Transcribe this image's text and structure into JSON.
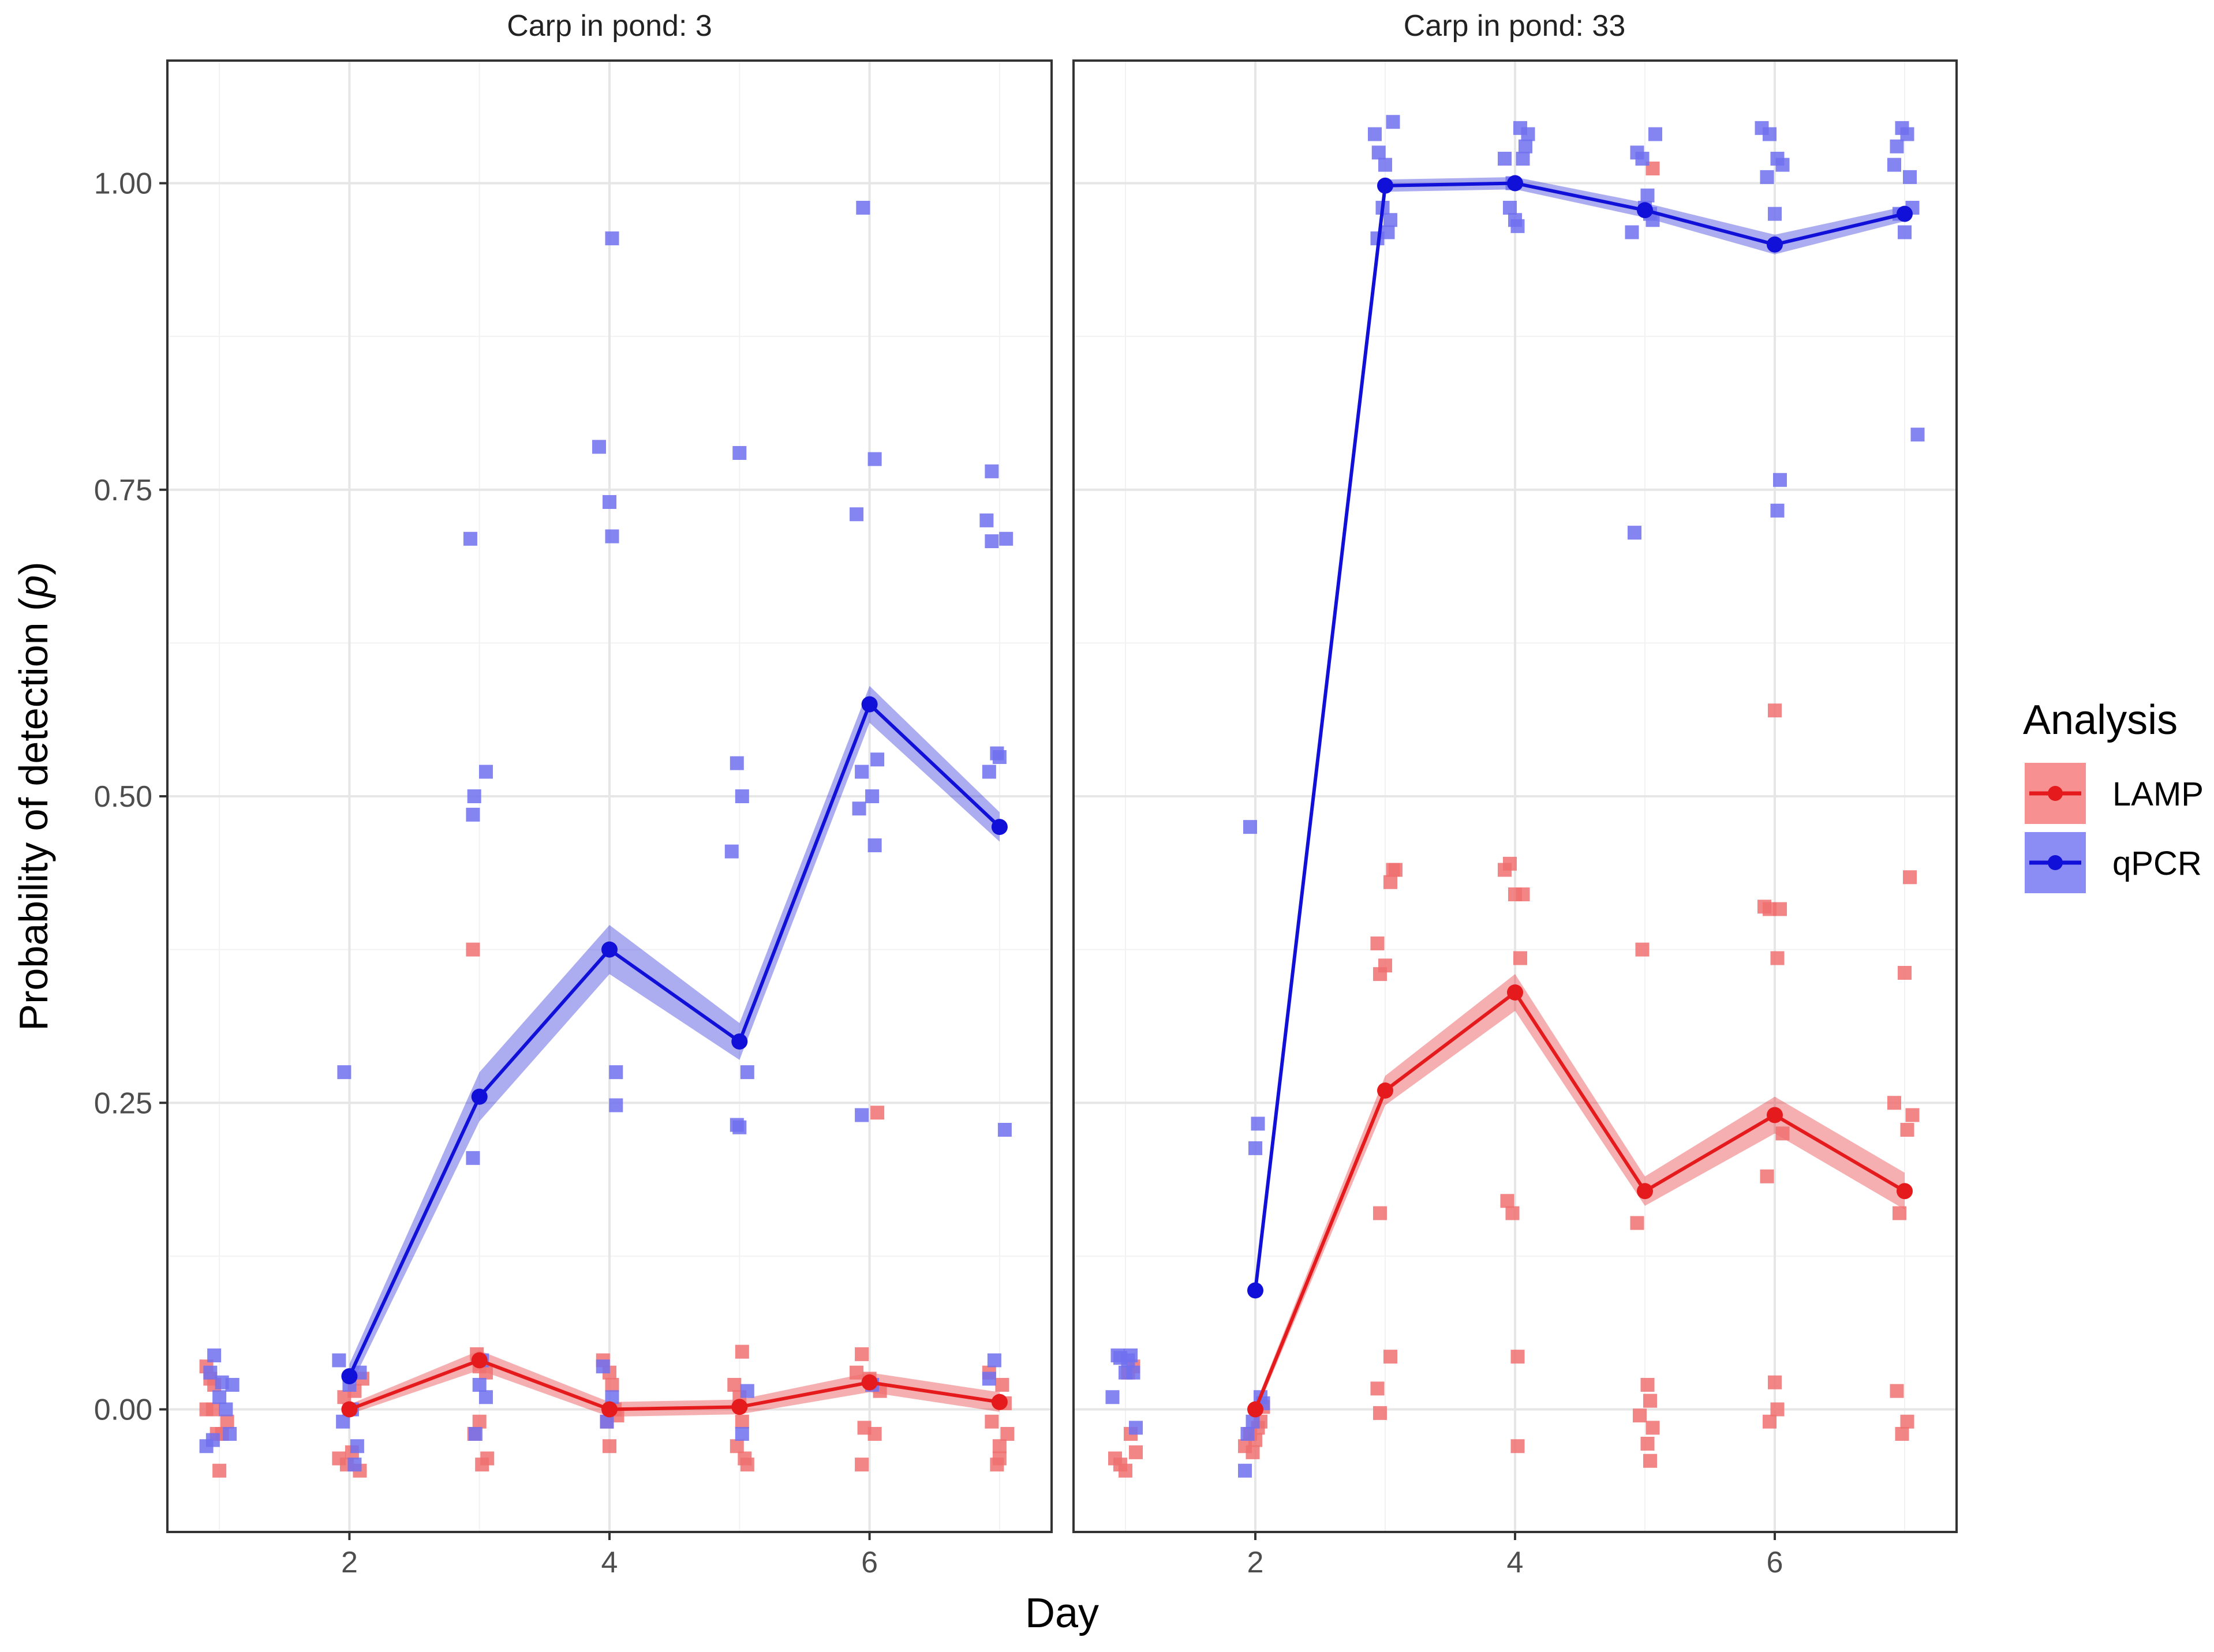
{
  "chart_data": {
    "type": "line",
    "facet_titles": [
      "Carp in pond: 3",
      "Carp in pond: 33"
    ],
    "xlabel": "Day",
    "ylabel_prefix": "Probability of detection (",
    "ylabel_italic": "p",
    "ylabel_suffix": ")",
    "x_ticks": [
      "2",
      "4",
      "6"
    ],
    "x_tick_values": [
      2,
      4,
      6
    ],
    "y_ticks": [
      "0.00",
      "0.25",
      "0.50",
      "0.75",
      "1.00"
    ],
    "y_tick_values": [
      0,
      0.25,
      0.5,
      0.75,
      1.0
    ],
    "xlim": [
      0.6,
      7.4
    ],
    "ylim": [
      -0.1,
      1.1
    ],
    "grid": true,
    "legend": {
      "title": "Analysis",
      "position": "right",
      "entries": [
        "LAMP",
        "qPCR"
      ]
    },
    "colors": {
      "LAMP": "#e41a1c",
      "qPCR": "#1010d8",
      "LAMP_points": "#f07070",
      "qPCR_points": "#7070f0"
    },
    "panels": [
      {
        "title": "Carp in pond: 3",
        "series": [
          {
            "name": "LAMP",
            "x": [
              2,
              3,
              4,
              5,
              6,
              7
            ],
            "y": [
              0.0,
              0.04,
              0.0,
              0.002,
              0.022,
              0.006
            ],
            "band": [
              0.004,
              0.008,
              0.006,
              0.006,
              0.008,
              0.008
            ]
          },
          {
            "name": "qPCR",
            "x": [
              2,
              3,
              4,
              5,
              6,
              7
            ],
            "y": [
              0.027,
              0.255,
              0.375,
              0.3,
              0.575,
              0.475
            ],
            "band": [
              0.01,
              0.02,
              0.02,
              0.015,
              0.015,
              0.012
            ]
          }
        ],
        "points": {
          "qPCR": [
            [
              0.9,
              -0.03
            ],
            [
              0.93,
              0.03
            ],
            [
              0.96,
              0.044
            ],
            [
              1.02,
              0.022
            ],
            [
              1.05,
              0.0
            ],
            [
              1.08,
              -0.02
            ],
            [
              1.1,
              0.02
            ],
            [
              0.95,
              -0.025
            ],
            [
              1.0,
              0.01
            ],
            [
              1.92,
              0.04
            ],
            [
              1.96,
              0.275
            ],
            [
              2.0,
              0.02
            ],
            [
              2.04,
              -0.045
            ],
            [
              2.08,
              0.03
            ],
            [
              1.95,
              -0.01
            ],
            [
              2.02,
              0.0
            ],
            [
              2.06,
              -0.03
            ],
            [
              2.93,
              0.71
            ],
            [
              2.96,
              0.5
            ],
            [
              2.95,
              0.485
            ],
            [
              3.05,
              0.52
            ],
            [
              2.95,
              0.205
            ],
            [
              3.02,
              0.04
            ],
            [
              3.05,
              0.01
            ],
            [
              2.97,
              -0.02
            ],
            [
              3.0,
              0.02
            ],
            [
              3.92,
              0.785
            ],
            [
              4.02,
              0.955
            ],
            [
              4.0,
              0.74
            ],
            [
              4.02,
              0.712
            ],
            [
              4.05,
              0.275
            ],
            [
              4.05,
              0.248
            ],
            [
              3.95,
              0.035
            ],
            [
              4.02,
              0.01
            ],
            [
              3.98,
              -0.01
            ],
            [
              4.94,
              0.455
            ],
            [
              4.98,
              0.527
            ],
            [
              5.02,
              0.5
            ],
            [
              5.0,
              0.78
            ],
            [
              5.06,
              0.275
            ],
            [
              4.98,
              0.232
            ],
            [
              5.0,
              0.23
            ],
            [
              5.06,
              0.015
            ],
            [
              5.02,
              -0.02
            ],
            [
              5.9,
              0.73
            ],
            [
              5.95,
              0.98
            ],
            [
              5.94,
              0.52
            ],
            [
              5.92,
              0.49
            ],
            [
              6.02,
              0.5
            ],
            [
              6.04,
              0.46
            ],
            [
              6.06,
              0.53
            ],
            [
              6.04,
              0.775
            ],
            [
              5.94,
              0.24
            ],
            [
              6.02,
              0.02
            ],
            [
              6.9,
              0.725
            ],
            [
              6.94,
              0.765
            ],
            [
              6.98,
              0.535
            ],
            [
              6.92,
              0.52
            ],
            [
              7.0,
              0.532
            ],
            [
              6.94,
              0.708
            ],
            [
              7.05,
              0.71
            ],
            [
              7.04,
              0.228
            ],
            [
              6.92,
              0.025
            ],
            [
              6.96,
              0.04
            ]
          ],
          "LAMP": [
            [
              0.9,
              0.035
            ],
            [
              0.93,
              0.025
            ],
            [
              0.96,
              0.02
            ],
            [
              0.9,
              0.0
            ],
            [
              0.95,
              0.0
            ],
            [
              1.02,
              -0.02
            ],
            [
              1.0,
              -0.05
            ],
            [
              0.98,
              -0.02
            ],
            [
              1.06,
              -0.01
            ],
            [
              1.92,
              -0.04
            ],
            [
              1.96,
              0.01
            ],
            [
              2.0,
              0.0
            ],
            [
              2.02,
              -0.035
            ],
            [
              2.08,
              -0.05
            ],
            [
              2.1,
              0.025
            ],
            [
              1.98,
              -0.045
            ],
            [
              2.04,
              0.015
            ],
            [
              2.95,
              0.375
            ],
            [
              2.98,
              0.045
            ],
            [
              3.0,
              0.035
            ],
            [
              3.05,
              0.03
            ],
            [
              2.96,
              -0.02
            ],
            [
              3.02,
              -0.045
            ],
            [
              3.06,
              -0.04
            ],
            [
              3.0,
              -0.01
            ],
            [
              3.95,
              0.04
            ],
            [
              4.0,
              0.03
            ],
            [
              4.02,
              0.02
            ],
            [
              4.04,
              0.0
            ],
            [
              3.98,
              -0.01
            ],
            [
              4.0,
              -0.03
            ],
            [
              4.06,
              -0.005
            ],
            [
              4.96,
              0.02
            ],
            [
              5.02,
              0.047
            ],
            [
              5.0,
              0.01
            ],
            [
              4.98,
              -0.03
            ],
            [
              5.04,
              -0.04
            ],
            [
              5.06,
              -0.045
            ],
            [
              5.02,
              -0.01
            ],
            [
              5.9,
              0.03
            ],
            [
              5.94,
              0.045
            ],
            [
              6.0,
              0.025
            ],
            [
              6.06,
              0.242
            ],
            [
              5.96,
              -0.015
            ],
            [
              6.04,
              -0.02
            ],
            [
              5.94,
              -0.045
            ],
            [
              6.08,
              0.015
            ],
            [
              6.92,
              0.03
            ],
            [
              6.94,
              -0.01
            ],
            [
              7.02,
              0.02
            ],
            [
              7.04,
              0.005
            ],
            [
              7.0,
              -0.03
            ],
            [
              6.98,
              -0.045
            ],
            [
              7.06,
              -0.02
            ],
            [
              7.0,
              -0.04
            ]
          ]
        }
      },
      {
        "title": "Carp in pond: 33",
        "series": [
          {
            "name": "LAMP",
            "x": [
              2,
              3,
              4,
              5,
              6,
              7
            ],
            "y": [
              0.0,
              0.26,
              0.34,
              0.178,
              0.24,
              0.178
            ],
            "band": [
              0.004,
              0.012,
              0.015,
              0.012,
              0.015,
              0.015
            ]
          },
          {
            "name": "qPCR",
            "x": [
              2,
              3,
              4,
              5,
              6,
              7
            ],
            "y": [
              0.097,
              0.998,
              1.0,
              0.978,
              0.95,
              0.975
            ],
            "band": [
              0.008,
              0.005,
              0.005,
              0.006,
              0.008,
              0.006
            ]
          }
        ],
        "points": {
          "qPCR": [
            [
              0.9,
              0.01
            ],
            [
              0.94,
              0.044
            ],
            [
              0.96,
              0.042
            ],
            [
              1.02,
              0.04
            ],
            [
              1.06,
              0.03
            ],
            [
              1.08,
              -0.015
            ],
            [
              1.0,
              0.03
            ],
            [
              1.04,
              0.044
            ],
            [
              1.96,
              0.475
            ],
            [
              2.02,
              0.233
            ],
            [
              2.0,
              0.213
            ],
            [
              2.04,
              0.01
            ],
            [
              1.98,
              -0.01
            ],
            [
              1.92,
              -0.05
            ],
            [
              2.06,
              0.005
            ],
            [
              1.94,
              -0.02
            ],
            [
              2.92,
              1.04
            ],
            [
              2.95,
              1.025
            ],
            [
              3.06,
              1.05
            ],
            [
              3.0,
              1.015
            ],
            [
              2.94,
              0.955
            ],
            [
              3.02,
              0.96
            ],
            [
              3.04,
              0.97
            ],
            [
              2.98,
              0.98
            ],
            [
              3.92,
              1.02
            ],
            [
              3.96,
              0.98
            ],
            [
              4.0,
              0.97
            ],
            [
              4.02,
              0.965
            ],
            [
              4.06,
              1.02
            ],
            [
              4.08,
              1.03
            ],
            [
              4.04,
              1.045
            ],
            [
              4.1,
              1.04
            ],
            [
              3.98,
              1.0
            ],
            [
              4.9,
              0.96
            ],
            [
              4.94,
              1.025
            ],
            [
              4.98,
              1.02
            ],
            [
              5.02,
              0.99
            ],
            [
              5.06,
              0.97
            ],
            [
              5.08,
              1.04
            ],
            [
              4.92,
              0.715
            ],
            [
              5.0,
              0.98
            ],
            [
              5.04,
              0.975
            ],
            [
              5.9,
              1.045
            ],
            [
              5.94,
              1.005
            ],
            [
              6.0,
              0.975
            ],
            [
              6.02,
              1.02
            ],
            [
              6.06,
              1.015
            ],
            [
              5.96,
              1.04
            ],
            [
              6.04,
              0.758
            ],
            [
              6.02,
              0.733
            ],
            [
              6.92,
              1.015
            ],
            [
              6.94,
              1.03
            ],
            [
              6.98,
              1.045
            ],
            [
              7.0,
              0.96
            ],
            [
              7.04,
              1.005
            ],
            [
              7.06,
              0.98
            ],
            [
              7.02,
              1.04
            ],
            [
              7.1,
              0.795
            ],
            [
              6.96,
              0.975
            ]
          ],
          "LAMP": [
            [
              0.92,
              -0.04
            ],
            [
              0.96,
              -0.045
            ],
            [
              1.0,
              -0.05
            ],
            [
              1.04,
              -0.02
            ],
            [
              1.08,
              -0.035
            ],
            [
              1.02,
              0.03
            ],
            [
              1.06,
              0.035
            ],
            [
              1.92,
              -0.03
            ],
            [
              1.96,
              -0.02
            ],
            [
              2.0,
              -0.025
            ],
            [
              2.04,
              -0.01
            ],
            [
              2.06,
              0.002
            ],
            [
              1.98,
              -0.035
            ],
            [
              2.02,
              -0.015
            ],
            [
              2.94,
              0.38
            ],
            [
              2.96,
              0.355
            ],
            [
              3.0,
              0.362
            ],
            [
              3.04,
              0.43
            ],
            [
              3.06,
              0.44
            ],
            [
              3.08,
              0.44
            ],
            [
              2.96,
              0.16
            ],
            [
              3.04,
              0.043
            ],
            [
              2.94,
              0.017
            ],
            [
              2.96,
              -0.003
            ],
            [
              3.92,
              0.44
            ],
            [
              3.96,
              0.445
            ],
            [
              4.0,
              0.42
            ],
            [
              4.06,
              0.42
            ],
            [
              4.04,
              0.368
            ],
            [
              3.94,
              0.17
            ],
            [
              3.98,
              0.16
            ],
            [
              4.02,
              0.043
            ],
            [
              4.02,
              -0.03
            ],
            [
              4.94,
              0.152
            ],
            [
              4.98,
              0.375
            ],
            [
              5.06,
              1.012
            ],
            [
              5.02,
              0.02
            ],
            [
              5.04,
              0.007
            ],
            [
              4.96,
              -0.005
            ],
            [
              5.06,
              -0.015
            ],
            [
              5.02,
              -0.028
            ],
            [
              5.04,
              -0.042
            ],
            [
              5.92,
              0.41
            ],
            [
              5.96,
              0.408
            ],
            [
              6.04,
              0.408
            ],
            [
              6.0,
              0.57
            ],
            [
              6.02,
              0.368
            ],
            [
              5.94,
              0.19
            ],
            [
              6.06,
              0.225
            ],
            [
              5.96,
              -0.01
            ],
            [
              6.02,
              0.0
            ],
            [
              6.0,
              0.022
            ],
            [
              6.92,
              0.25
            ],
            [
              6.96,
              0.16
            ],
            [
              7.0,
              0.356
            ],
            [
              7.04,
              0.434
            ],
            [
              7.06,
              0.24
            ],
            [
              7.02,
              0.228
            ],
            [
              6.94,
              0.015
            ],
            [
              6.98,
              -0.02
            ],
            [
              7.02,
              -0.01
            ]
          ]
        }
      }
    ]
  }
}
